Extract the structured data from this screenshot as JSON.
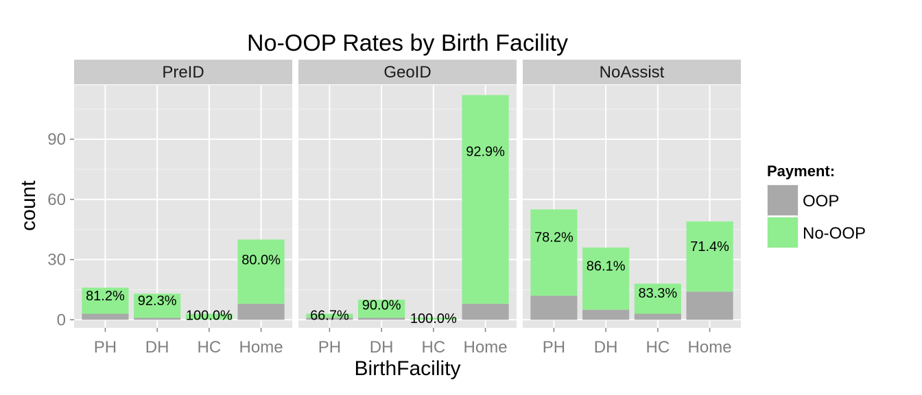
{
  "chart_data": {
    "type": "bar",
    "stacked": true,
    "title": "No-OOP Rates by Birth Facility",
    "xlabel": "BirthFacility",
    "ylabel": "count",
    "ylim": [
      -4,
      117
    ],
    "yticks": [
      0,
      30,
      60,
      90
    ],
    "categories": [
      "PH",
      "DH",
      "HC",
      "Home"
    ],
    "legend": {
      "title": "Payment:",
      "position": "right",
      "entries": [
        {
          "name": "OOP",
          "color": "#a9a9a9"
        },
        {
          "name": "No-OOP",
          "color": "#90ee90"
        }
      ]
    },
    "background": "#e5e5e5",
    "strip_color": "#cccccc",
    "grid": true,
    "facets": [
      {
        "name": "PreID",
        "series": [
          {
            "name": "OOP",
            "values": [
              3,
              1,
              0,
              8
            ]
          },
          {
            "name": "No-OOP",
            "values": [
              13,
              12,
              3,
              32
            ]
          }
        ],
        "labels": [
          "81.2%",
          "92.3%",
          "100.0%",
          "80.0%"
        ]
      },
      {
        "name": "GeoID",
        "series": [
          {
            "name": "OOP",
            "values": [
              1,
              1,
              0,
              8
            ]
          },
          {
            "name": "No-OOP",
            "values": [
              2,
              9,
              1,
              104
            ]
          }
        ],
        "labels": [
          "66.7%",
          "90.0%",
          "100.0%",
          "92.9%"
        ]
      },
      {
        "name": "NoAssist",
        "series": [
          {
            "name": "OOP",
            "values": [
              12,
              5,
              3,
              14
            ]
          },
          {
            "name": "No-OOP",
            "values": [
              43,
              31,
              15,
              35
            ]
          }
        ],
        "labels": [
          "78.2%",
          "86.1%",
          "83.3%",
          "71.4%"
        ]
      }
    ]
  }
}
